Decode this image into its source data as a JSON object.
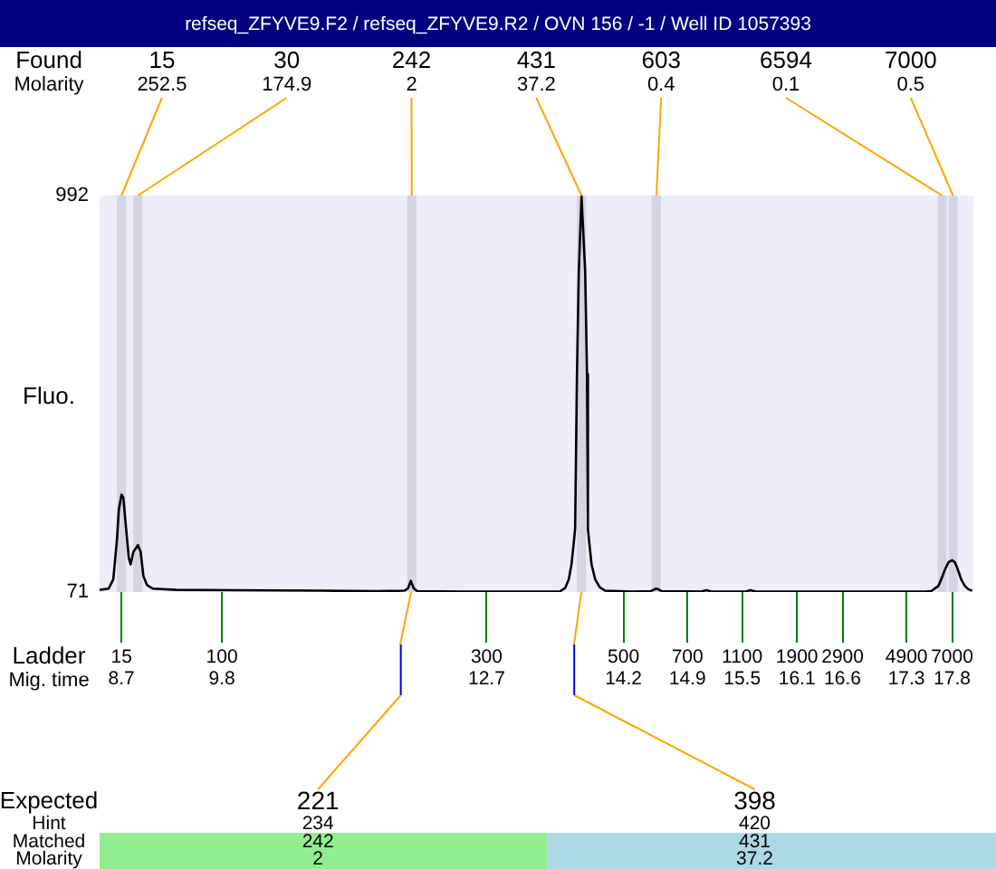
{
  "chart_data": {
    "type": "line",
    "title": "refseq_ZFYVE9.F2 / refseq_ZFYVE9.R2 / OVN 156 / -1 / Well ID 1057393",
    "ylabel": "Fluo.",
    "xlabel": "Mig. time",
    "x": [
      8.46,
      8.56,
      8.61,
      8.65,
      8.67,
      8.7,
      8.72,
      8.75,
      8.78,
      8.8,
      8.83,
      8.88,
      8.91,
      8.94,
      8.98,
      9.04,
      9.3,
      10.88,
      11.5,
      11.8,
      11.84,
      11.87,
      11.9,
      11.94,
      12.5,
      13.2,
      13.5,
      13.56,
      13.6,
      13.63,
      13.65,
      13.67,
      13.69,
      13.71,
      13.74,
      13.78,
      13.8,
      13.81,
      13.83,
      13.85,
      13.89,
      13.94,
      14.0,
      14.3,
      14.5,
      14.56,
      14.62,
      15.05,
      15.11,
      15.16,
      15.54,
      15.59,
      15.65,
      17.5,
      17.57,
      17.65,
      17.68,
      17.72,
      17.76,
      17.8,
      17.83,
      17.86,
      17.9,
      17.94,
      17.98,
      18.02
    ],
    "series": [
      {
        "color": "#000000",
        "values": [
          76,
          79,
          100,
          192,
          261,
          297,
          290,
          219,
          150,
          135,
          164,
          180,
          164,
          108,
          87,
          79,
          76,
          74,
          73,
          74,
          80,
          97,
          80,
          73,
          72,
          72,
          72,
          80,
          100,
          135,
          175,
          218,
          577,
          815,
          990,
          815,
          577,
          218,
          175,
          135,
          100,
          82,
          74,
          72,
          73,
          79,
          73,
          72,
          75,
          72,
          72,
          75,
          72,
          72,
          73,
          85,
          100,
          122,
          140,
          145,
          140,
          125,
          100,
          85,
          77,
          74
        ]
      }
    ],
    "xlim": [
      8.46,
      18.03
    ],
    "xticks": [
      8.7,
      9.8,
      12.7,
      14.2,
      14.9,
      15.5,
      16.1,
      16.6,
      17.3,
      17.8
    ],
    "ylim": [
      71,
      992
    ],
    "yticks": [
      71,
      992
    ],
    "grid": false,
    "legend": false,
    "marker": "none",
    "line_style": "solid",
    "bands": [
      {
        "axis": "x",
        "from": 8.65,
        "to": 8.75,
        "label": "15",
        "color": "#d4d4e2"
      },
      {
        "axis": "x",
        "from": 8.83,
        "to": 8.93,
        "label": "30",
        "color": "#d4d4e2"
      },
      {
        "axis": "x",
        "from": 11.83,
        "to": 11.93,
        "label": "242",
        "color": "#d4d4e2"
      },
      {
        "axis": "x",
        "from": 13.69,
        "to": 13.79,
        "label": "431",
        "color": "#d4d4e2"
      },
      {
        "axis": "x",
        "from": 14.51,
        "to": 14.61,
        "label": "603",
        "color": "#d4d4e2"
      },
      {
        "axis": "x",
        "from": 17.64,
        "to": 17.74,
        "label": "6594",
        "color": "#d4d4e2"
      },
      {
        "axis": "x",
        "from": 17.76,
        "to": 17.86,
        "label": "7000",
        "color": "#d4d4e2"
      }
    ],
    "annotations": [
      "Found",
      "Molarity",
      {
        "text": "252.5",
        "x": 8.7,
        "y": 992
      },
      {
        "text": "174.9",
        "x": 8.88,
        "y": 992
      },
      {
        "text": "2",
        "x": 11.88,
        "y": 992
      },
      {
        "text": "37.2",
        "x": 13.74,
        "y": 992
      },
      {
        "text": "0.4",
        "x": 14.56,
        "y": 992
      },
      {
        "text": "0.1",
        "x": 17.69,
        "y": 992
      },
      {
        "text": "0.5",
        "x": 17.81,
        "y": 992
      },
      "Ladder",
      "15",
      "100",
      "300",
      "500",
      "700",
      "1100",
      "1900",
      "2900",
      "4900",
      "7000",
      "Expected",
      {
        "text": "221",
        "x": 11.76
      },
      {
        "text": "398",
        "x": 13.66
      },
      "Hint",
      "234",
      "420",
      "Matched",
      "242",
      "431",
      "Molarity",
      "2",
      "37.2"
    ]
  }
}
